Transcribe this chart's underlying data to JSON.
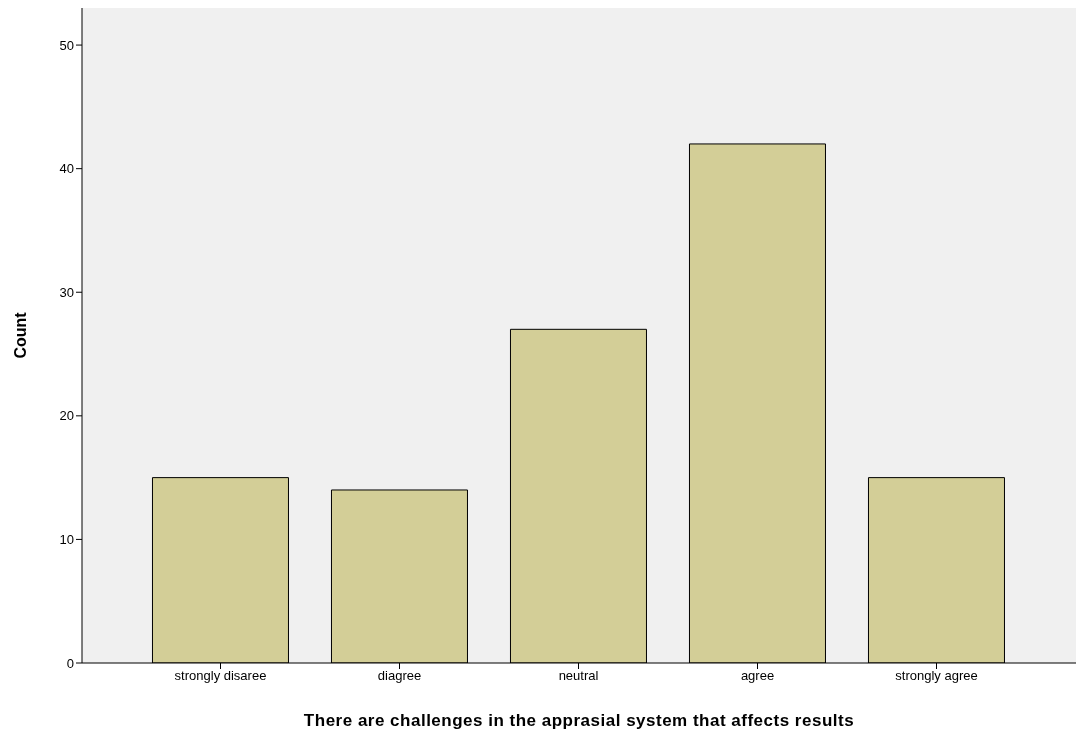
{
  "chart_data": {
    "type": "bar",
    "xlabel": "There are challenges in the apprasial system that affects results",
    "ylabel": "Count",
    "categories": [
      "strongly disaree",
      "diagree",
      "neutral",
      "agree",
      "strongly agree"
    ],
    "values": [
      15,
      14,
      27,
      42,
      15
    ],
    "color": "#d3ce97",
    "ylim": [
      0,
      53
    ],
    "yticks": [
      0,
      10,
      20,
      30,
      40,
      50
    ],
    "grid": false
  }
}
